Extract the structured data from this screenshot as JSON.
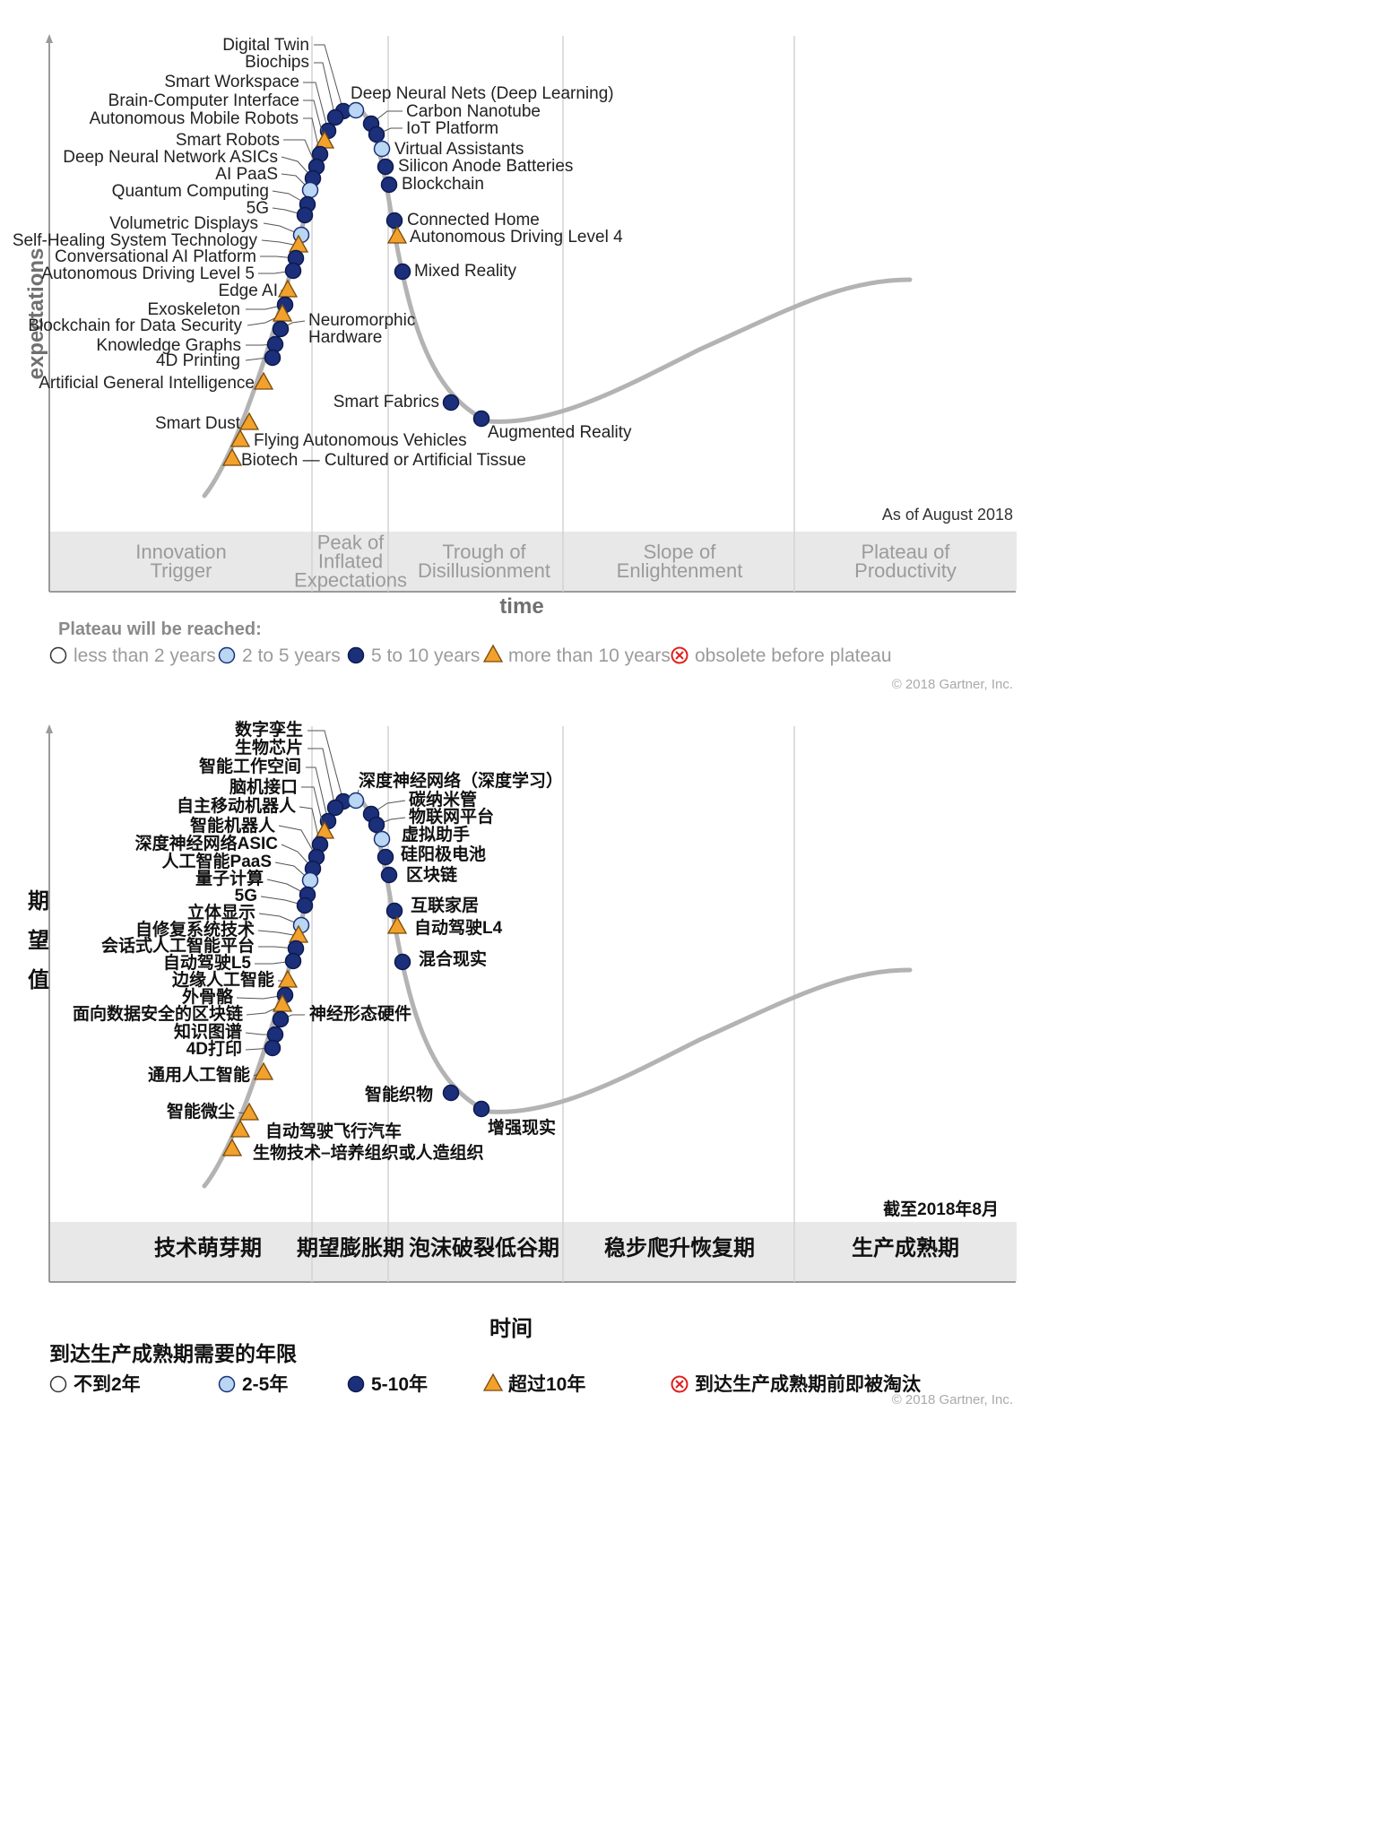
{
  "colors": {
    "curve": "#b3b3b3",
    "dark_dot": "#1b2f7a",
    "light_dot": "#b9d6f2",
    "triangle": "#f2a12c",
    "obsolete": "#e0201b",
    "band": "#e8e8e8",
    "divider": "#d3d3d3"
  },
  "en": {
    "y_label": "expectations",
    "x_label": "time",
    "as_of": "As of August 2018",
    "copyright": "© 2018 Gartner, Inc.",
    "phases": [
      {
        "lines": [
          "Innovation",
          "Trigger"
        ]
      },
      {
        "lines": [
          "Peak of",
          "Inflated",
          "Expectations"
        ]
      },
      {
        "lines": [
          "Trough of",
          "Disillusionment"
        ]
      },
      {
        "lines": [
          "Slope of",
          "Enlightenment"
        ]
      },
      {
        "lines": [
          "Plateau of",
          "Productivity"
        ]
      }
    ],
    "legend_title": "Plateau will be reached:",
    "legend": [
      {
        "type": "empty",
        "label": "less than 2 years"
      },
      {
        "type": "light",
        "label": "2 to 5 years"
      },
      {
        "type": "dark",
        "label": "5 to 10 years"
      },
      {
        "type": "triangle",
        "label": "more than 10 years"
      },
      {
        "type": "obsolete",
        "label": "obsolete before plateau"
      }
    ]
  },
  "zh": {
    "y_label": [
      "期",
      "望",
      "值"
    ],
    "x_label": "时间",
    "as_of": "截至2018年8月",
    "copyright": "© 2018 Gartner, Inc.",
    "phases": [
      {
        "lines": [
          "技术萌芽期"
        ]
      },
      {
        "lines": [
          "期望膨胀期"
        ]
      },
      {
        "lines": [
          "泡沫破裂低谷期"
        ]
      },
      {
        "lines": [
          "稳步爬升恢复期"
        ]
      },
      {
        "lines": [
          "生产成熟期"
        ]
      }
    ],
    "legend_title": "到达生产成熟期需要的年限",
    "legend": [
      {
        "type": "empty",
        "label": "不到2年"
      },
      {
        "type": "light",
        "label": "2-5年"
      },
      {
        "type": "dark",
        "label": "5-10年"
      },
      {
        "type": "triangle",
        "label": "超过10年"
      },
      {
        "type": "obsolete",
        "label": "到达生产成熟期前即被淘汰"
      }
    ]
  },
  "chart_data": {
    "type": "scatter",
    "chart_kind": "Gartner hype cycle",
    "x_axis": "time",
    "y_axis": "expectations",
    "phase_order": [
      "Innovation Trigger",
      "Peak of Inflated Expectations",
      "Trough of Disillusionment",
      "Slope of Enlightenment",
      "Plateau of Productivity"
    ],
    "technologies": [
      {
        "en": "Digital Twin",
        "zh": "数字孪生",
        "plateau": "5 to 10 years",
        "phase": "Peak of Inflated Expectations"
      },
      {
        "en": "Biochips",
        "zh": "生物芯片",
        "plateau": "5 to 10 years",
        "phase": "Peak of Inflated Expectations"
      },
      {
        "en": "Smart Workspace",
        "zh": "智能工作空间",
        "plateau": "5 to 10 years",
        "phase": "Peak of Inflated Expectations"
      },
      {
        "en": "Brain-Computer Interface",
        "zh": "脑机接口",
        "plateau": "more than 10 years",
        "phase": "Peak of Inflated Expectations"
      },
      {
        "en": "Autonomous Mobile Robots",
        "zh": "自主移动机器人",
        "plateau": "5 to 10 years",
        "phase": "Peak of Inflated Expectations"
      },
      {
        "en": "Smart Robots",
        "zh": "智能机器人",
        "plateau": "5 to 10 years",
        "phase": "Peak of Inflated Expectations"
      },
      {
        "en": "Deep Neural Network ASICs",
        "zh": "深度神经网络ASIC",
        "plateau": "5 to 10 years",
        "phase": "Peak of Inflated Expectations"
      },
      {
        "en": "AI PaaS",
        "zh": "人工智能PaaS",
        "plateau": "2 to 5 years",
        "phase": "Peak of Inflated Expectations"
      },
      {
        "en": "Quantum Computing",
        "zh": "量子计算",
        "plateau": "5 to 10 years",
        "phase": "Peak of Inflated Expectations"
      },
      {
        "en": "5G",
        "zh": "5G",
        "plateau": "5 to 10 years",
        "phase": "Peak of Inflated Expectations"
      },
      {
        "en": "Volumetric Displays",
        "zh": "立体显示",
        "plateau": "2 to 5 years",
        "phase": "Innovation Trigger"
      },
      {
        "en": "Self-Healing System Technology",
        "zh": "自修复系统技术",
        "plateau": "more than 10 years",
        "phase": "Innovation Trigger"
      },
      {
        "en": "Conversational AI Platform",
        "zh": "会话式人工智能平台",
        "plateau": "5 to 10 years",
        "phase": "Innovation Trigger"
      },
      {
        "en": "Autonomous Driving Level 5",
        "zh": "自动驾驶L5",
        "plateau": "5 to 10 years",
        "phase": "Innovation Trigger"
      },
      {
        "en": "Edge AI",
        "zh": "边缘人工智能",
        "plateau": "more than 10 years",
        "phase": "Innovation Trigger"
      },
      {
        "en": "Exoskeleton",
        "zh": "外骨骼",
        "plateau": "5 to 10 years",
        "phase": "Innovation Trigger"
      },
      {
        "en": "Blockchain for Data Security",
        "zh": "面向数据安全的区块链",
        "plateau": "more than 10 years",
        "phase": "Innovation Trigger"
      },
      {
        "en": "Knowledge Graphs",
        "zh": "知识图谱",
        "plateau": "5 to 10 years",
        "phase": "Innovation Trigger"
      },
      {
        "en": "4D Printing",
        "zh": "4D打印",
        "plateau": "5 to 10 years",
        "phase": "Innovation Trigger"
      },
      {
        "en": "Artificial General Intelligence",
        "zh": "通用人工智能",
        "plateau": "more than 10 years",
        "phase": "Innovation Trigger"
      },
      {
        "en": "Smart Dust",
        "zh": "智能微尘",
        "plateau": "more than 10 years",
        "phase": "Innovation Trigger"
      },
      {
        "en": "Flying Autonomous Vehicles",
        "zh": "自动驾驶飞行汽车",
        "plateau": "more than 10 years",
        "phase": "Innovation Trigger"
      },
      {
        "en": "Biotech — Cultured or Artificial Tissue",
        "zh": "生物技术–培养组织或人造组织",
        "plateau": "more than 10 years",
        "phase": "Innovation Trigger"
      },
      {
        "en": "Neuromorphic Hardware",
        "zh": "神经形态硬件",
        "plateau": "5 to 10 years",
        "phase": "Innovation Trigger"
      },
      {
        "en": "Deep Neural Nets (Deep Learning)",
        "zh": "深度神经网络（深度学习）",
        "plateau": "2 to 5 years",
        "phase": "Peak of Inflated Expectations"
      },
      {
        "en": "Carbon Nanotube",
        "zh": "碳纳米管",
        "plateau": "5 to 10 years",
        "phase": "Peak of Inflated Expectations"
      },
      {
        "en": "IoT Platform",
        "zh": "物联网平台",
        "plateau": "5 to 10 years",
        "phase": "Peak of Inflated Expectations"
      },
      {
        "en": "Virtual Assistants",
        "zh": "虚拟助手",
        "plateau": "2 to 5 years",
        "phase": "Trough of Disillusionment"
      },
      {
        "en": "Silicon Anode Batteries",
        "zh": "硅阳极电池",
        "plateau": "5 to 10 years",
        "phase": "Trough of Disillusionment"
      },
      {
        "en": "Blockchain",
        "zh": "区块链",
        "plateau": "5 to 10 years",
        "phase": "Trough of Disillusionment"
      },
      {
        "en": "Connected Home",
        "zh": "互联家居",
        "plateau": "5 to 10 years",
        "phase": "Trough of Disillusionment"
      },
      {
        "en": "Autonomous Driving Level 4",
        "zh": "自动驾驶L4",
        "plateau": "more than 10 years",
        "phase": "Trough of Disillusionment"
      },
      {
        "en": "Mixed Reality",
        "zh": "混合现实",
        "plateau": "5 to 10 years",
        "phase": "Trough of Disillusionment"
      },
      {
        "en": "Smart Fabrics",
        "zh": "智能织物",
        "plateau": "5 to 10 years",
        "phase": "Trough of Disillusionment"
      },
      {
        "en": "Augmented Reality",
        "zh": "增强现实",
        "plateau": "5 to 10 years",
        "phase": "Trough of Disillusionment"
      }
    ]
  }
}
